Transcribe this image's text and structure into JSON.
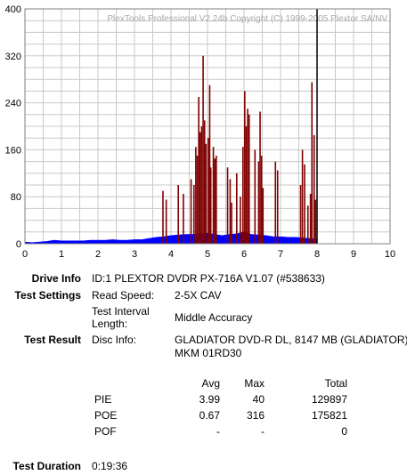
{
  "chart_data": {
    "type": "bar",
    "title": "PlexTools Professional V2.24b Copyright (C) 1999-2005 Plextor SA/NV",
    "xlabel": "",
    "ylabel": "",
    "xlim": [
      0,
      10
    ],
    "ylim": [
      0,
      400
    ],
    "x_ticks": [
      "0",
      "1",
      "2",
      "3",
      "4",
      "5",
      "6",
      "7",
      "8",
      "9",
      "10"
    ],
    "y_ticks": [
      "0",
      "80",
      "160",
      "240",
      "320",
      "400"
    ],
    "grid": true,
    "end_marker_x": 8.0,
    "series": [
      {
        "key": "pie",
        "color": "#0000ff",
        "x": [
          0.0,
          0.2,
          0.4,
          0.6,
          0.8,
          1.0,
          1.2,
          1.4,
          1.6,
          1.8,
          2.0,
          2.2,
          2.4,
          2.6,
          2.8,
          3.0,
          3.2,
          3.4,
          3.6,
          3.8,
          4.0,
          4.2,
          4.4,
          4.6,
          4.8,
          5.0,
          5.2,
          5.4,
          5.6,
          5.8,
          6.0,
          6.2,
          6.4,
          6.6,
          6.8,
          7.0,
          7.2,
          7.4,
          7.6,
          7.8,
          8.0
        ],
        "values": [
          3,
          2,
          3,
          4,
          6,
          5,
          5,
          5,
          5,
          6,
          6,
          6,
          7,
          6,
          6,
          7,
          7,
          9,
          11,
          12,
          14,
          15,
          16,
          16,
          17,
          18,
          16,
          14,
          16,
          17,
          20,
          16,
          15,
          14,
          12,
          12,
          11,
          11,
          10,
          9,
          8
        ]
      },
      {
        "key": "poe",
        "color": "#800000",
        "x": [
          3.78,
          3.87,
          4.2,
          4.34,
          4.55,
          4.63,
          4.68,
          4.72,
          4.76,
          4.8,
          4.84,
          4.88,
          4.92,
          4.96,
          5.02,
          5.06,
          5.09,
          5.16,
          5.2,
          5.24,
          5.55,
          5.62,
          5.66,
          5.8,
          5.9,
          5.97,
          6.02,
          6.06,
          6.1,
          6.14,
          6.3,
          6.4,
          6.44,
          6.48,
          6.52,
          6.86,
          6.92,
          7.55,
          7.6,
          7.66,
          7.75,
          7.82,
          7.86,
          7.92,
          7.96
        ],
        "values": [
          90,
          75,
          100,
          85,
          110,
          100,
          165,
          150,
          250,
          190,
          200,
          320,
          210,
          170,
          180,
          270,
          130,
          165,
          145,
          150,
          130,
          110,
          70,
          120,
          80,
          165,
          260,
          200,
          230,
          220,
          160,
          140,
          225,
          150,
          95,
          140,
          125,
          100,
          160,
          135,
          65,
          85,
          275,
          185,
          75
        ]
      }
    ]
  },
  "results": {
    "drive_info": {
      "label": "Drive Info",
      "value": "ID:1 PLEXTOR DVDR PX-716A V1.07 (#538633)"
    },
    "test_settings": {
      "label": "Test Settings",
      "read_speed_label": "Read Speed:",
      "read_speed_value": "2-5X CAV",
      "interval_label_1": "Test Interval",
      "interval_label_2": "Length:",
      "interval_value": "Middle Accuracy"
    },
    "test_result": {
      "label": "Test Result",
      "disc_info_label": "Disc Info:",
      "disc_info_line1": "GLADIATOR DVD-R DL, 8147 MB (GLADIATOR)",
      "disc_info_line2": "MKM 01RD30"
    },
    "stats": {
      "headers": {
        "avg": "Avg",
        "max": "Max",
        "total": "Total"
      },
      "rows": [
        {
          "name": "PIE",
          "avg": "3.99",
          "max": "40",
          "total": "129897"
        },
        {
          "name": "POE",
          "avg": "0.67",
          "max": "316",
          "total": "175821"
        },
        {
          "name": "POF",
          "avg": "-",
          "max": "-",
          "total": "0"
        }
      ]
    },
    "duration": {
      "label": "Test Duration",
      "value": "0:19:36"
    }
  }
}
